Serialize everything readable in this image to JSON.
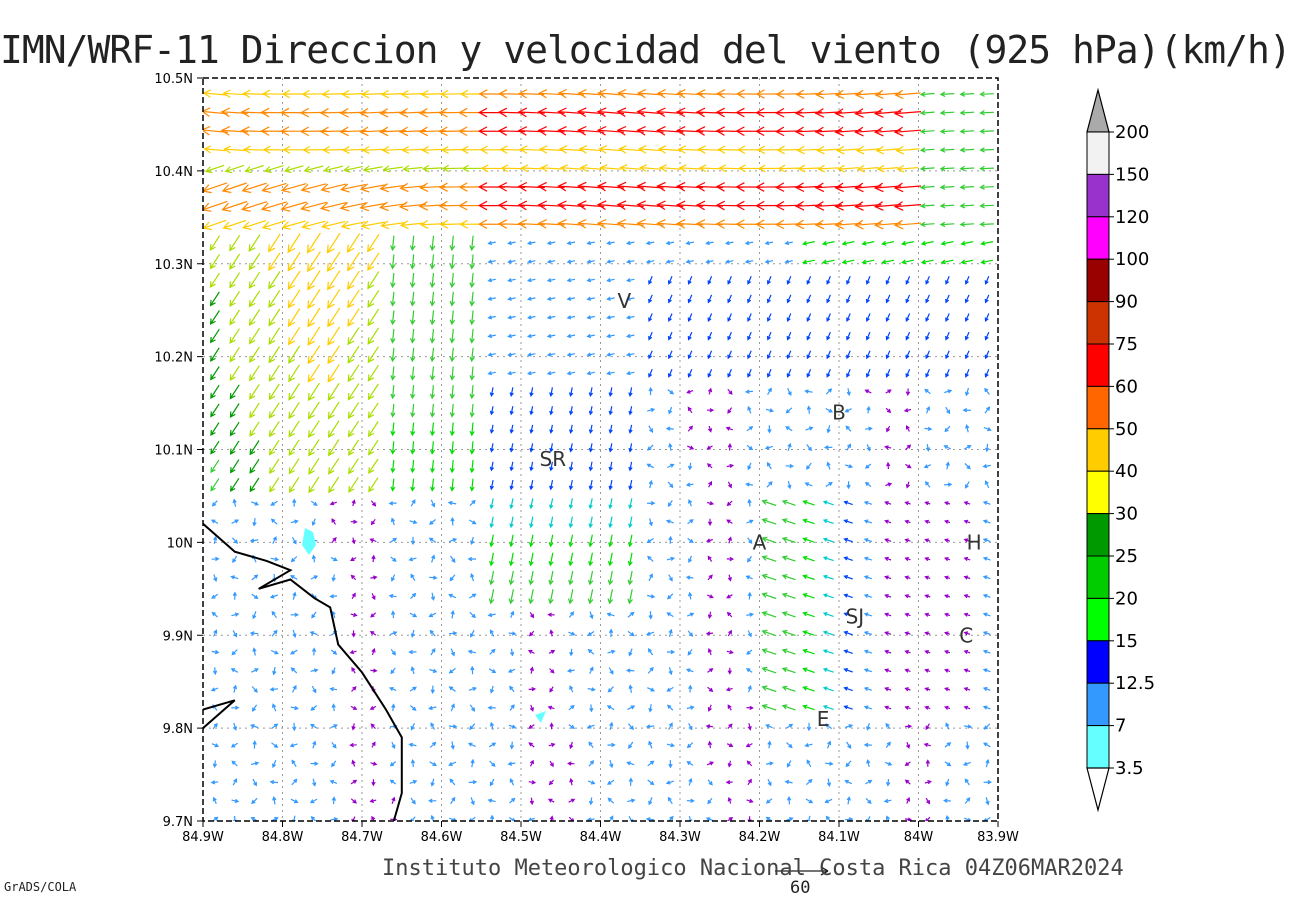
{
  "title": "IMN/WRF-11 Direccion y velocidad del viento (925 hPa)(km/h)",
  "footer": "Instituto Meteorologico Nacional Costa Rica 04Z06MAR2024",
  "software": "GrADS/COLA",
  "reference_vector": {
    "value": "60"
  },
  "map": {
    "lon_range": [
      -84.9,
      -83.9
    ],
    "lat_range": [
      9.7,
      10.5
    ],
    "lon_ticks": [
      {
        "v": -84.9,
        "label": "84.9W"
      },
      {
        "v": -84.8,
        "label": "84.8W"
      },
      {
        "v": -84.7,
        "label": "84.7W"
      },
      {
        "v": -84.6,
        "label": "84.6W"
      },
      {
        "v": -84.5,
        "label": "84.5W"
      },
      {
        "v": -84.4,
        "label": "84.4W"
      },
      {
        "v": -84.3,
        "label": "84.3W"
      },
      {
        "v": -84.2,
        "label": "84.2W"
      },
      {
        "v": -84.1,
        "label": "84.1W"
      },
      {
        "v": -84.0,
        "label": "84W"
      },
      {
        "v": -83.9,
        "label": "83.9W"
      }
    ],
    "lat_ticks": [
      {
        "v": 10.5,
        "label": "10.5N"
      },
      {
        "v": 10.4,
        "label": "10.4N"
      },
      {
        "v": 10.3,
        "label": "10.3N"
      },
      {
        "v": 10.2,
        "label": "10.2N"
      },
      {
        "v": 10.1,
        "label": "10.1N"
      },
      {
        "v": 10.0,
        "label": "10N"
      },
      {
        "v": 9.9,
        "label": "9.9N"
      },
      {
        "v": 9.8,
        "label": "9.8N"
      },
      {
        "v": 9.7,
        "label": "9.7N"
      }
    ],
    "grid": true,
    "cities": [
      {
        "label": "V",
        "lon": -84.37,
        "lat": 10.26
      },
      {
        "label": "B",
        "lon": -84.1,
        "lat": 10.14
      },
      {
        "label": "SR",
        "lon": -84.46,
        "lat": 10.09
      },
      {
        "label": "A",
        "lon": -84.2,
        "lat": 10.0
      },
      {
        "label": "H",
        "lon": -83.93,
        "lat": 10.0
      },
      {
        "label": "SJ",
        "lon": -84.08,
        "lat": 9.92
      },
      {
        "label": "C",
        "lon": -83.94,
        "lat": 9.9
      },
      {
        "label": "E",
        "lon": -84.12,
        "lat": 9.81
      }
    ],
    "coastline": [
      [
        [
          -84.9,
          10.02
        ],
        [
          -84.86,
          9.99
        ],
        [
          -84.82,
          9.98
        ],
        [
          -84.79,
          9.97
        ],
        [
          -84.83,
          9.95
        ],
        [
          -84.79,
          9.96
        ],
        [
          -84.76,
          9.94
        ],
        [
          -84.74,
          9.93
        ],
        [
          -84.73,
          9.89
        ],
        [
          -84.7,
          9.86
        ],
        [
          -84.67,
          9.82
        ],
        [
          -84.65,
          9.79
        ],
        [
          -84.65,
          9.73
        ],
        [
          -84.66,
          9.7
        ]
      ],
      [
        [
          -84.9,
          9.82
        ],
        [
          -84.86,
          9.83
        ],
        [
          -84.9,
          9.8
        ]
      ]
    ],
    "wind_field_description": "Wind vector field from WRF-11 model at 925 hPa, 4x3 grid spacing"
  },
  "colorbar": {
    "labels": [
      "200",
      "150",
      "120",
      "100",
      "90",
      "75",
      "60",
      "50",
      "40",
      "30",
      "25",
      "20",
      "15",
      "12.5",
      "7",
      "3.5"
    ],
    "colors": [
      "#f2f2f2",
      "#9932cc",
      "#ff00ff",
      "#990000",
      "#cc3300",
      "#ff0000",
      "#ff6600",
      "#ffcc00",
      "#ffff00",
      "#009900",
      "#00cc00",
      "#00ff00",
      "#0000ff",
      "#3399ff",
      "#66ffff"
    ],
    "top_triangle": "#aaaaaa",
    "bottom_triangle": "#ffffff"
  },
  "speed_colors": [
    {
      "max": 3.5,
      "color": "#9900cc"
    },
    {
      "max": 7,
      "color": "#3399ff"
    },
    {
      "max": 12.5,
      "color": "#0044ff"
    },
    {
      "max": 15,
      "color": "#00cccc"
    },
    {
      "max": 20,
      "color": "#00dd00"
    },
    {
      "max": 25,
      "color": "#33cc33"
    },
    {
      "max": 30,
      "color": "#009900"
    },
    {
      "max": 40,
      "color": "#aadd00"
    },
    {
      "max": 50,
      "color": "#ffcc00"
    },
    {
      "max": 60,
      "color": "#ff8800"
    },
    {
      "max": 75,
      "color": "#ff0000"
    },
    {
      "max": 90,
      "color": "#cc0066"
    },
    {
      "max": 200,
      "color": "#990000"
    }
  ]
}
